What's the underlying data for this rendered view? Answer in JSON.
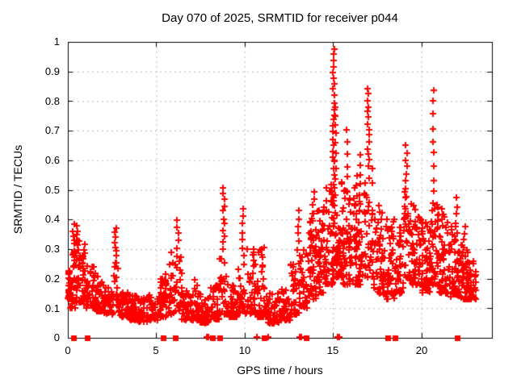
{
  "title": "Day 070 of 2025, SRMTID for receiver p044",
  "chart_data": {
    "type": "scatter",
    "title": "Day 070 of 2025, SRMTID for receiver p044",
    "xlabel": "GPS time / hours",
    "ylabel": "SRMTID / TECUs",
    "xlim": [
      0,
      24
    ],
    "ylim": [
      0,
      1
    ],
    "xticks": [
      0,
      5,
      10,
      15,
      20
    ],
    "xtick_labels": [
      "0",
      "5",
      "10",
      "15",
      "20"
    ],
    "yticks": [
      0,
      0.1,
      0.2,
      0.3,
      0.4,
      0.5,
      0.6,
      0.7,
      0.8,
      0.9,
      1
    ],
    "ytick_labels": [
      "0",
      "0.1",
      "0.2",
      "0.3",
      "0.4",
      "0.5",
      "0.6",
      "0.7",
      "0.8",
      "0.9",
      "1"
    ],
    "grid": true,
    "legend": "none",
    "marker": {
      "shape": "plus",
      "size": 9,
      "stroke": 2
    },
    "colors": {
      "marker": "#ff0000",
      "grid": "#b9b9b9",
      "axis": "#000000",
      "background": "#ffffff"
    },
    "peaks": [
      [
        15.05,
        0.98
      ],
      [
        17.0,
        0.845
      ],
      [
        20.7,
        0.84
      ],
      [
        8.8,
        0.51
      ],
      [
        13.9,
        0.49
      ],
      [
        9.9,
        0.44
      ],
      [
        13.05,
        0.43
      ],
      [
        6.2,
        0.4
      ],
      [
        0.35,
        0.38
      ],
      [
        2.7,
        0.375
      ],
      [
        16.5,
        0.62
      ],
      [
        19.15,
        0.65
      ]
    ],
    "bands": [
      [
        0.02,
        0.15,
        22,
        0.13,
        0.23,
        1.2
      ],
      [
        0.15,
        0.45,
        26,
        0.1,
        0.3,
        1.8
      ],
      [
        0.45,
        0.72,
        26,
        0.12,
        0.33,
        1.8
      ],
      [
        0.72,
        1.0,
        24,
        0.11,
        0.28,
        2.0
      ],
      [
        1.0,
        1.5,
        40,
        0.1,
        0.25,
        2.0
      ],
      [
        1.5,
        2.0,
        40,
        0.09,
        0.22,
        2.0
      ],
      [
        2.0,
        2.55,
        40,
        0.08,
        0.18,
        1.8
      ],
      [
        2.55,
        2.85,
        14,
        0.11,
        0.26,
        1.5
      ],
      [
        2.85,
        3.4,
        40,
        0.07,
        0.16,
        1.8
      ],
      [
        3.4,
        4.0,
        45,
        0.06,
        0.15,
        1.8
      ],
      [
        4.0,
        4.6,
        42,
        0.055,
        0.14,
        1.8
      ],
      [
        4.6,
        5.2,
        42,
        0.06,
        0.15,
        1.8
      ],
      [
        5.2,
        5.65,
        30,
        0.07,
        0.2,
        1.6
      ],
      [
        5.65,
        6.0,
        24,
        0.08,
        0.3,
        2.0
      ],
      [
        6.0,
        6.45,
        26,
        0.09,
        0.3,
        1.8
      ],
      [
        6.45,
        7.1,
        45,
        0.06,
        0.16,
        1.8
      ],
      [
        7.1,
        7.5,
        30,
        0.06,
        0.2,
        2.0
      ],
      [
        7.5,
        8.1,
        45,
        0.05,
        0.15,
        1.8
      ],
      [
        8.1,
        8.6,
        40,
        0.06,
        0.18,
        1.8
      ],
      [
        8.6,
        9.05,
        26,
        0.08,
        0.3,
        2.0
      ],
      [
        9.05,
        9.6,
        35,
        0.07,
        0.18,
        1.8
      ],
      [
        9.6,
        10.1,
        30,
        0.08,
        0.25,
        2.0
      ],
      [
        10.1,
        10.7,
        36,
        0.08,
        0.3,
        2.2
      ],
      [
        10.7,
        11.3,
        36,
        0.07,
        0.3,
        2.2
      ],
      [
        11.3,
        12.0,
        46,
        0.05,
        0.15,
        1.8
      ],
      [
        12.0,
        12.6,
        40,
        0.06,
        0.18,
        1.8
      ],
      [
        12.6,
        13.1,
        34,
        0.08,
        0.25,
        1.8
      ],
      [
        13.1,
        13.6,
        36,
        0.1,
        0.3,
        1.6
      ],
      [
        13.6,
        14.1,
        50,
        0.13,
        0.42,
        1.7
      ],
      [
        14.1,
        14.6,
        55,
        0.15,
        0.45,
        1.6
      ],
      [
        14.6,
        15.05,
        50,
        0.18,
        0.52,
        1.5
      ],
      [
        15.05,
        15.55,
        50,
        0.2,
        0.55,
        1.6
      ],
      [
        15.55,
        16.1,
        55,
        0.18,
        0.5,
        1.6
      ],
      [
        16.1,
        16.75,
        55,
        0.18,
        0.52,
        1.6
      ],
      [
        16.75,
        17.3,
        40,
        0.2,
        0.6,
        1.5
      ],
      [
        17.3,
        17.9,
        50,
        0.15,
        0.45,
        1.6
      ],
      [
        17.9,
        18.5,
        50,
        0.13,
        0.42,
        1.7
      ],
      [
        18.5,
        19.0,
        45,
        0.15,
        0.4,
        1.6
      ],
      [
        19.0,
        19.45,
        35,
        0.2,
        0.5,
        1.5
      ],
      [
        19.45,
        20.0,
        50,
        0.18,
        0.45,
        1.7
      ],
      [
        20.0,
        20.5,
        50,
        0.15,
        0.4,
        1.7
      ],
      [
        20.5,
        20.9,
        30,
        0.18,
        0.45,
        1.6
      ],
      [
        20.9,
        21.5,
        55,
        0.15,
        0.42,
        1.7
      ],
      [
        21.5,
        22.1,
        55,
        0.14,
        0.4,
        1.7
      ],
      [
        22.1,
        22.6,
        45,
        0.13,
        0.35,
        1.7
      ],
      [
        22.6,
        23.1,
        40,
        0.13,
        0.3,
        1.7
      ]
    ],
    "spikes": [
      [
        0.32,
        0.28,
        0.38,
        7
      ],
      [
        0.55,
        0.3,
        0.375,
        6
      ],
      [
        0.9,
        0.25,
        0.32,
        5
      ],
      [
        2.7,
        0.24,
        0.375,
        9
      ],
      [
        5.5,
        0.15,
        0.21,
        5
      ],
      [
        6.2,
        0.28,
        0.4,
        6
      ],
      [
        8.82,
        0.3,
        0.51,
        11
      ],
      [
        9.9,
        0.28,
        0.44,
        7
      ],
      [
        10.5,
        0.22,
        0.3,
        5
      ],
      [
        11.05,
        0.2,
        0.3,
        5
      ],
      [
        13.05,
        0.25,
        0.43,
        8
      ],
      [
        13.9,
        0.4,
        0.49,
        5
      ],
      [
        15.05,
        0.55,
        0.98,
        22
      ],
      [
        15.12,
        0.45,
        0.78,
        12
      ],
      [
        15.8,
        0.5,
        0.7,
        6
      ],
      [
        16.3,
        0.45,
        0.55,
        4
      ],
      [
        16.5,
        0.45,
        0.62,
        6
      ],
      [
        17.0,
        0.58,
        0.845,
        14
      ],
      [
        19.15,
        0.48,
        0.65,
        8
      ],
      [
        20.7,
        0.45,
        0.84,
        10
      ],
      [
        20.95,
        0.4,
        0.455,
        4
      ],
      [
        21.2,
        0.38,
        0.44,
        4
      ],
      [
        22.0,
        0.42,
        0.47,
        3
      ],
      [
        22.45,
        0.28,
        0.38,
        5
      ]
    ],
    "zero_squares": [
      0.3,
      1.1,
      5.4,
      6.1,
      8.2,
      8.6,
      11.1,
      13.5,
      18.1,
      18.5,
      22.05
    ],
    "zero_plus": [
      7.85,
      7.95,
      10.7,
      11.35,
      13.1,
      13.2,
      15.27,
      15.38
    ],
    "seed": 7
  }
}
